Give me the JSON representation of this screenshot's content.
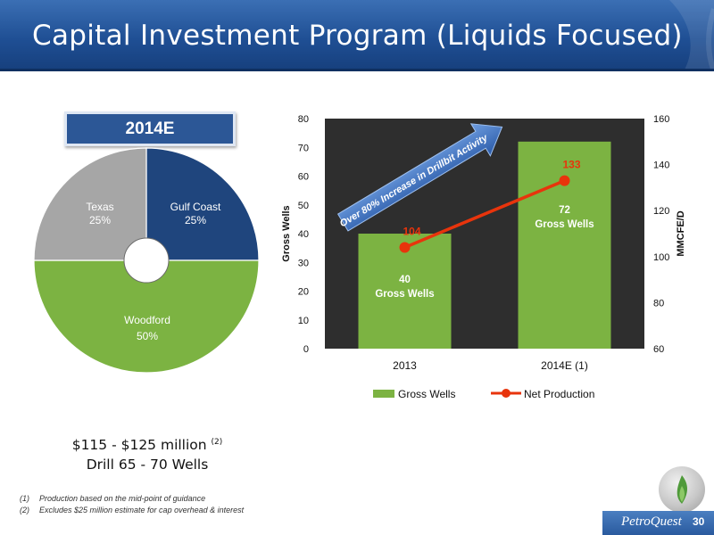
{
  "slide": {
    "title": "Capital Investment Program (Liquids Focused)",
    "page_number": "30",
    "logo": "PetroQuest",
    "budget_line1": "$115 - $125 million",
    "budget_sup": "(2)",
    "budget_line2": "Drill 65 - 70 Wells",
    "footnotes": [
      {
        "num": "(1)",
        "text": "Production based on the mid-point of guidance"
      },
      {
        "num": "(2)",
        "text": "Excludes $25 million estimate for cap overhead & interest"
      }
    ],
    "arrow_text": "Over 80% Increase in Drillbit Activity",
    "colors": {
      "title_bar": "#1f4f94",
      "green": "#7cb342",
      "navy": "#1f457d",
      "gray": "#a6a6a6",
      "red": "#e8340c",
      "plot_bg": "#2e2e2e"
    }
  },
  "chart_data": [
    {
      "type": "pie",
      "title": "2014E",
      "slices": [
        {
          "label": "Gulf Coast",
          "value": 25,
          "display": "25%",
          "color": "#1f457d"
        },
        {
          "label": "Woodford",
          "value": 50,
          "display": "50%",
          "color": "#7cb342"
        },
        {
          "label": "Texas",
          "value": 25,
          "display": "25%",
          "color": "#a6a6a6"
        }
      ]
    },
    {
      "type": "bar",
      "categories": [
        "2013",
        "2014E (1)"
      ],
      "ylabel": "Gross Wells",
      "y2label": "MMCFE/D",
      "ylim": [
        0,
        80
      ],
      "y2lim": [
        60,
        160
      ],
      "yticks": [
        0,
        10,
        20,
        30,
        40,
        50,
        60,
        70,
        80
      ],
      "y2ticks": [
        60,
        80,
        100,
        120,
        140,
        160
      ],
      "grid": false,
      "legend_position": "bottom",
      "series": [
        {
          "name": "Gross Wells",
          "type": "bar",
          "axis": "left",
          "values": [
            40,
            72
          ],
          "labels": [
            [
              "40",
              "Gross  Wells"
            ],
            [
              "72",
              "Gross Wells"
            ]
          ],
          "color": "#7cb342"
        },
        {
          "name": "Net Production",
          "type": "line",
          "axis": "right",
          "values": [
            104,
            133
          ],
          "labels": [
            "104",
            "133"
          ],
          "color": "#e8340c"
        }
      ]
    }
  ]
}
